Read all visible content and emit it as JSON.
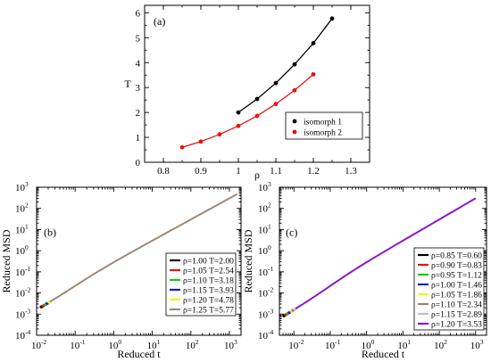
{
  "chart_data": [
    {
      "type": "scatter",
      "panel_label": "(a)",
      "xlabel": "ρ",
      "ylabel": "T",
      "xlim": [
        0.75,
        1.35
      ],
      "ylim": [
        0,
        6.3
      ],
      "xticks": [
        0.8,
        0.9,
        1.0,
        1.1,
        1.2,
        1.3
      ],
      "xtick_labels": [
        "0.8",
        "0.9",
        "1",
        "1.1",
        "1.2",
        "1.3"
      ],
      "yticks": [
        0,
        1,
        2,
        3,
        4,
        5,
        6
      ],
      "ytick_labels": [
        "0",
        "1",
        "2",
        "3",
        "4",
        "5",
        "6"
      ],
      "legend_position": "bottom-right",
      "series": [
        {
          "name": "isomorph 1",
          "color": "#000000",
          "x": [
            1.0,
            1.05,
            1.1,
            1.15,
            1.2,
            1.25
          ],
          "y": [
            2.0,
            2.54,
            3.18,
            3.93,
            4.78,
            5.77
          ]
        },
        {
          "name": "isomorph 2",
          "color": "#e8120f",
          "x": [
            0.85,
            0.9,
            0.95,
            1.0,
            1.05,
            1.1,
            1.15,
            1.2
          ],
          "y": [
            0.6,
            0.83,
            1.12,
            1.46,
            1.86,
            2.34,
            2.89,
            3.53
          ]
        }
      ]
    },
    {
      "type": "line",
      "panel_label": "(b)",
      "xlabel": "Reduced t",
      "ylabel": "Reduced MSD",
      "xscale": "log",
      "yscale": "log",
      "xlim_exp": [
        -2,
        3.3
      ],
      "ylim_exp": [
        -4,
        3
      ],
      "xtick_exps": [
        -2,
        -1,
        0,
        1,
        2,
        3
      ],
      "xtick_labels": [
        "10",
        "10",
        "10",
        "10",
        "10",
        "10"
      ],
      "xtick_sups": [
        "-2",
        "-1",
        "0",
        "1",
        "2",
        "3"
      ],
      "ytick_exps": [
        -4,
        -3,
        -2,
        -1,
        0,
        1,
        2,
        3
      ],
      "ytick_labels": [
        "10",
        "10",
        "10",
        "10",
        "10",
        "10",
        "10",
        "10"
      ],
      "ytick_sups": [
        "-4",
        "-3",
        "-2",
        "-1",
        "0",
        "1",
        "2",
        "3"
      ],
      "legend_position": "bottom-right",
      "t_end_exp": 3.2,
      "series": [
        {
          "name": "ρ=1.00 T=2.00",
          "color": "#000000"
        },
        {
          "name": "ρ=1.05 T=2.54",
          "color": "#e8120f"
        },
        {
          "name": "ρ=1.10 T=3.18",
          "color": "#18c918"
        },
        {
          "name": "ρ=1.15 T=3.93",
          "color": "#1515d8"
        },
        {
          "name": "ρ=1.20 T=4.78",
          "color": "#f2f21a"
        },
        {
          "name": "ρ=1.25 T=5.77",
          "color": "#9b8b7a"
        }
      ]
    },
    {
      "type": "line",
      "panel_label": "(c)",
      "xlabel": "Reduced t",
      "ylabel": "Reduced MSD",
      "xscale": "log",
      "yscale": "log",
      "xlim_exp": [
        -2.4,
        3.3
      ],
      "ylim_exp": [
        -4,
        3
      ],
      "xtick_exps": [
        -2,
        -1,
        0,
        1,
        2,
        3
      ],
      "xtick_labels": [
        "10",
        "10",
        "10",
        "10",
        "10",
        "10"
      ],
      "xtick_sups": [
        "-2",
        "-1",
        "0",
        "1",
        "2",
        "3"
      ],
      "ytick_exps": [
        -4,
        -3,
        -2,
        -1,
        0,
        1,
        2,
        3
      ],
      "ytick_labels": [
        "10",
        "10",
        "10",
        "10",
        "10",
        "10",
        "10",
        "10"
      ],
      "ytick_sups": [
        "-4",
        "-3",
        "-2",
        "-1",
        "0",
        "1",
        "2",
        "3"
      ],
      "legend_position": "bottom-right",
      "t_end_exp": 3.0,
      "series": [
        {
          "name": "ρ=0.85 T=0.60",
          "color": "#000000"
        },
        {
          "name": "ρ=0.90 T=0.83",
          "color": "#e8120f"
        },
        {
          "name": "ρ=0.95 T=1.12",
          "color": "#18c918"
        },
        {
          "name": "ρ=1.00 T=1.46",
          "color": "#1515d8"
        },
        {
          "name": "ρ=1.05 T=1.86",
          "color": "#f2f21a"
        },
        {
          "name": "ρ=1.10 T=2.34",
          "color": "#a07d6a"
        },
        {
          "name": "ρ=1.15 T=2.89",
          "color": "#c3c3c3"
        },
        {
          "name": "ρ=1.20 T=3.53",
          "color": "#8b18c9"
        }
      ]
    }
  ]
}
